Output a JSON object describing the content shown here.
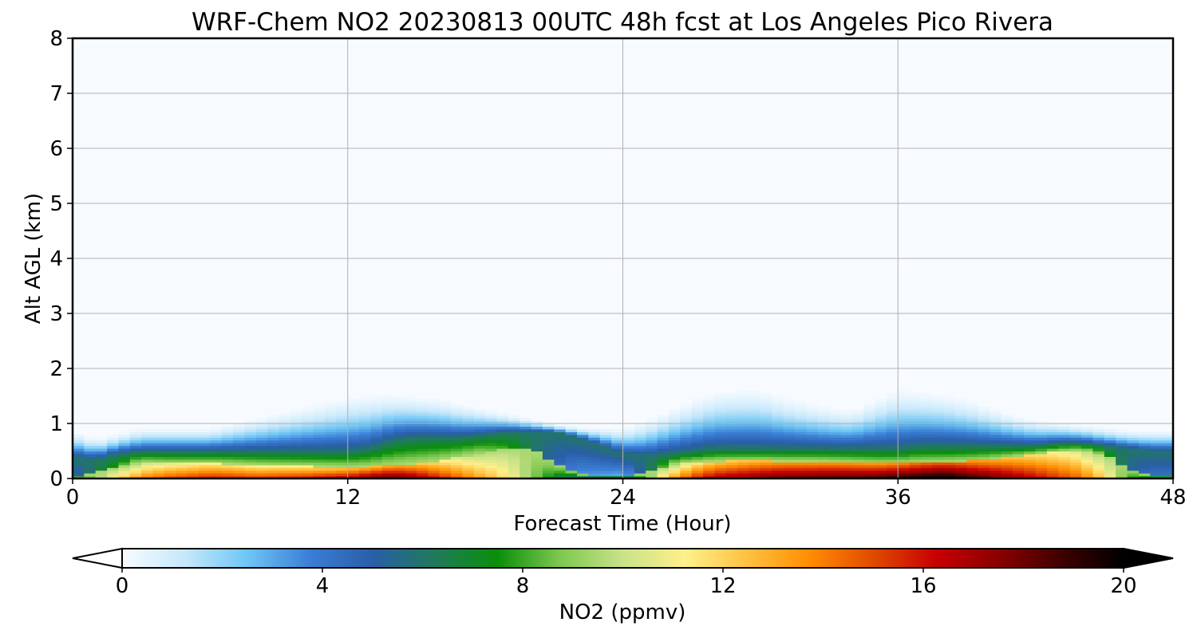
{
  "chart_data": {
    "type": "heatmap",
    "title": "WRF-Chem NO2  20230813 00UTC 48h fcst at Los Angeles Pico Rivera",
    "xlabel": "Forecast Time (Hour)",
    "ylabel": "Alt AGL (km)",
    "xlim": [
      0,
      48
    ],
    "ylim": [
      0,
      8
    ],
    "xticks": [
      "0",
      "12",
      "24",
      "36",
      "48"
    ],
    "yticks": [
      "0",
      "1",
      "2",
      "3",
      "4",
      "5",
      "6",
      "7",
      "8"
    ],
    "grid": true,
    "colorbar": {
      "label": "NO2  (ppmv)",
      "range": [
        0,
        20
      ],
      "ticks": [
        "0",
        "4",
        "8",
        "12",
        "16",
        "20"
      ],
      "extend": "both",
      "colors": [
        "#f7fbff",
        "#c6e8fb",
        "#6ec6f5",
        "#3a7ed6",
        "#2a5ea8",
        "#1f7a5a",
        "#0a8f0a",
        "#7ec850",
        "#c9e28a",
        "#fff08a",
        "#ffc040",
        "#ff8c00",
        "#e04a00",
        "#c80000",
        "#8a0000",
        "#400000",
        "#000000"
      ]
    },
    "time_hours": [
      0,
      1,
      2,
      3,
      4,
      5,
      6,
      7,
      8,
      9,
      10,
      11,
      12,
      13,
      14,
      15,
      16,
      17,
      18,
      19,
      20,
      21,
      22,
      23,
      24,
      25,
      26,
      27,
      28,
      29,
      30,
      31,
      32,
      33,
      34,
      35,
      36,
      37,
      38,
      39,
      40,
      41,
      42,
      43,
      44,
      45,
      46,
      47,
      48
    ],
    "sfc_no2_ppmv": [
      6.5,
      9,
      12,
      14,
      15,
      15.5,
      16,
      15.8,
      15.5,
      15.8,
      16,
      16.5,
      17,
      18,
      18.5,
      17.5,
      16,
      14.5,
      13,
      11.5,
      9,
      7,
      5,
      4.5,
      4,
      8,
      13,
      15.5,
      17,
      17.5,
      18,
      18.5,
      18.5,
      18.8,
      18.8,
      19,
      19.5,
      20,
      20.5,
      19.5,
      18.5,
      17.5,
      16.5,
      15.5,
      14.5,
      12,
      8,
      6,
      6
    ],
    "no2_column_top_km": [
      0.9,
      0.75,
      0.85,
      0.95,
      0.95,
      0.95,
      0.95,
      1.05,
      1.15,
      1.25,
      1.35,
      1.45,
      1.55,
      1.6,
      1.6,
      1.55,
      1.5,
      1.4,
      1.3,
      1.2,
      1.1,
      1.0,
      0.95,
      0.95,
      0.95,
      1.1,
      1.3,
      1.5,
      1.65,
      1.7,
      1.7,
      1.55,
      1.45,
      1.35,
      1.3,
      1.5,
      1.7,
      1.65,
      1.6,
      1.5,
      1.35,
      1.2,
      1.1,
      1.05,
      1.0,
      0.95,
      0.9,
      0.9,
      0.9
    ],
    "polluted_layer_top_km": [
      0.4,
      0.35,
      0.45,
      0.5,
      0.5,
      0.5,
      0.5,
      0.5,
      0.5,
      0.5,
      0.5,
      0.5,
      0.5,
      0.55,
      0.7,
      0.75,
      0.75,
      0.75,
      0.8,
      0.85,
      0.85,
      0.85,
      0.75,
      0.6,
      0.45,
      0.4,
      0.45,
      0.5,
      0.55,
      0.55,
      0.55,
      0.55,
      0.55,
      0.55,
      0.55,
      0.55,
      0.55,
      0.6,
      0.6,
      0.6,
      0.6,
      0.6,
      0.6,
      0.65,
      0.65,
      0.6,
      0.55,
      0.5,
      0.5
    ],
    "high_no2_layer_top_km": [
      0.05,
      0.1,
      0.2,
      0.3,
      0.28,
      0.28,
      0.28,
      0.27,
      0.25,
      0.24,
      0.23,
      0.22,
      0.21,
      0.22,
      0.25,
      0.28,
      0.33,
      0.4,
      0.48,
      0.55,
      0.55,
      0.3,
      0.1,
      0.05,
      0.05,
      0.1,
      0.25,
      0.3,
      0.32,
      0.33,
      0.33,
      0.32,
      0.32,
      0.31,
      0.3,
      0.28,
      0.28,
      0.3,
      0.3,
      0.32,
      0.35,
      0.4,
      0.45,
      0.5,
      0.52,
      0.45,
      0.2,
      0.05,
      0.05
    ]
  }
}
